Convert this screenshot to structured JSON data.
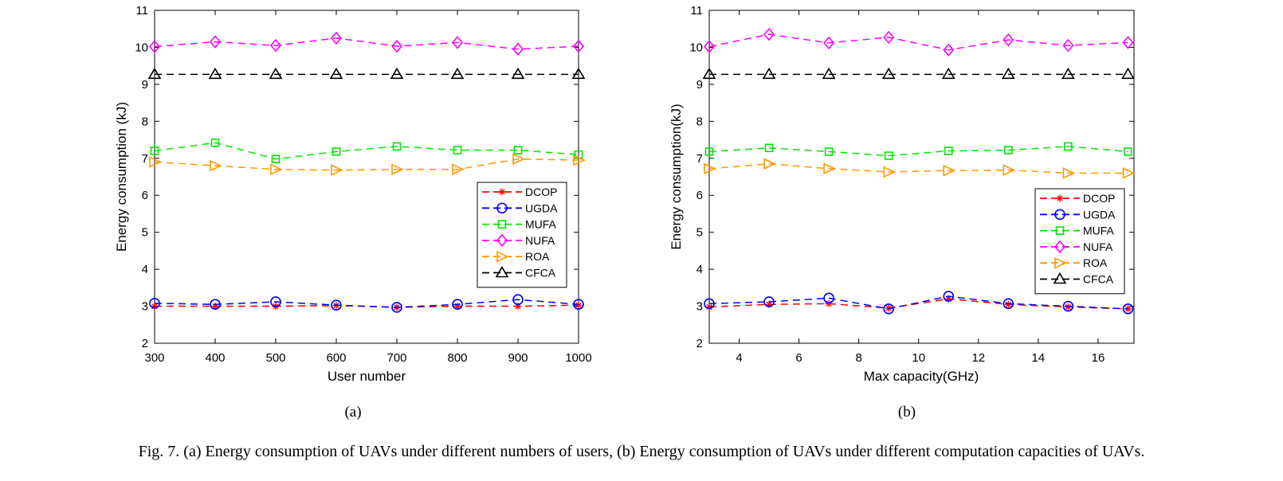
{
  "caption": "Fig. 7.  (a) Energy consumption of UAVs under different numbers of users, (b) Energy consumption of UAVs under different computation capacities of UAVs.",
  "chart_data": [
    {
      "type": "line",
      "subcaption": "(a)",
      "xlabel": "User number",
      "ylabel": "Energy consumption (kJ)",
      "x": [
        300,
        400,
        500,
        600,
        700,
        800,
        900,
        1000
      ],
      "xlim": [
        300,
        1000
      ],
      "ylim": [
        2,
        11
      ],
      "xticks": [
        300,
        400,
        500,
        600,
        700,
        800,
        900,
        1000
      ],
      "yticks": [
        2,
        3,
        4,
        5,
        6,
        7,
        8,
        9,
        10,
        11
      ],
      "grid": false,
      "legend_position": "center-right",
      "series": [
        {
          "name": "DCOP",
          "color": "#ff0000",
          "marker": "asterisk",
          "values": [
            3.0,
            3.0,
            3.0,
            3.02,
            2.97,
            3.0,
            3.0,
            3.03
          ]
        },
        {
          "name": "UGDA",
          "color": "#0000ff",
          "marker": "circle",
          "values": [
            3.08,
            3.05,
            3.12,
            3.03,
            2.97,
            3.05,
            3.18,
            3.05
          ]
        },
        {
          "name": "MUFA",
          "color": "#00e600",
          "marker": "square",
          "values": [
            7.2,
            7.42,
            6.98,
            7.18,
            7.32,
            7.22,
            7.22,
            7.1
          ]
        },
        {
          "name": "NUFA",
          "color": "#ff00ff",
          "marker": "diamond",
          "values": [
            10.02,
            10.15,
            10.05,
            10.25,
            10.03,
            10.13,
            9.95,
            10.03
          ]
        },
        {
          "name": "ROA",
          "color": "#ff9900",
          "marker": "triangle-right",
          "values": [
            6.9,
            6.8,
            6.7,
            6.68,
            6.7,
            6.7,
            6.98,
            6.95
          ]
        },
        {
          "name": "CFCA",
          "color": "#000000",
          "marker": "triangle-up",
          "values": [
            9.27,
            9.27,
            9.27,
            9.27,
            9.27,
            9.27,
            9.27,
            9.27
          ]
        }
      ]
    },
    {
      "type": "line",
      "subcaption": "(b)",
      "xlabel": "Max capacity(GHz)",
      "ylabel": "Energy consumption(kJ)",
      "x": [
        3,
        5,
        7,
        9,
        11,
        13,
        15,
        17
      ],
      "xlim": [
        3,
        17.2
      ],
      "ylim": [
        2,
        11
      ],
      "xticks": [
        4,
        6,
        8,
        10,
        12,
        14,
        16
      ],
      "yticks": [
        2,
        3,
        4,
        5,
        6,
        7,
        8,
        9,
        10,
        11
      ],
      "grid": false,
      "legend_position": "bottom-right",
      "series": [
        {
          "name": "DCOP",
          "color": "#ff0000",
          "marker": "asterisk",
          "values": [
            2.98,
            3.05,
            3.07,
            2.95,
            3.2,
            3.05,
            2.98,
            2.93
          ]
        },
        {
          "name": "UGDA",
          "color": "#0000ff",
          "marker": "circle",
          "values": [
            3.07,
            3.12,
            3.22,
            2.93,
            3.27,
            3.07,
            3.0,
            2.93
          ]
        },
        {
          "name": "MUFA",
          "color": "#00e600",
          "marker": "square",
          "values": [
            7.18,
            7.28,
            7.18,
            7.07,
            7.2,
            7.22,
            7.32,
            7.18
          ]
        },
        {
          "name": "NUFA",
          "color": "#ff00ff",
          "marker": "diamond",
          "values": [
            10.02,
            10.35,
            10.12,
            10.27,
            9.93,
            10.2,
            10.05,
            10.13
          ]
        },
        {
          "name": "ROA",
          "color": "#ff9900",
          "marker": "triangle-right",
          "values": [
            6.72,
            6.85,
            6.72,
            6.63,
            6.67,
            6.68,
            6.6,
            6.6
          ]
        },
        {
          "name": "CFCA",
          "color": "#000000",
          "marker": "triangle-up",
          "values": [
            9.27,
            9.27,
            9.27,
            9.27,
            9.27,
            9.27,
            9.27,
            9.27
          ]
        }
      ]
    }
  ]
}
